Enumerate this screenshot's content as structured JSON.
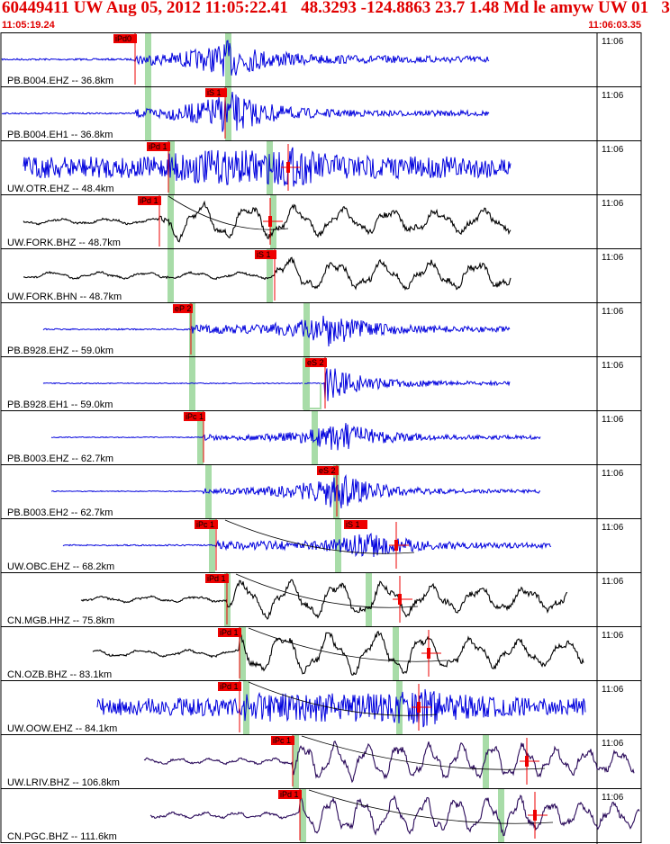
{
  "header": {
    "title": "60449411 UW Aug 05, 2012 11:05:22.41   48.3293 -124.8863 23.7 1.48 Md le amyw UW 01   3",
    "start_time": "11:05:19.24",
    "end_time": "11:06:03.35"
  },
  "colors": {
    "header_red": "#e00000",
    "pick_red": "#ee0000",
    "window_green": "#a8dca8",
    "trace_blue": "#0000dd",
    "trace_black": "#000000",
    "trace_purple": "#2a0a5a"
  },
  "minute_label": "11:06",
  "traces": [
    {
      "station": "PB.B004.EHZ",
      "distance": "-- 36.8km",
      "pick": "iPd0",
      "color": "blue"
    },
    {
      "station": "PB.B004.EH1",
      "distance": "-- 36.8km",
      "pick": "iS 1",
      "color": "blue"
    },
    {
      "station": "UW.OTR.EHZ",
      "distance": "-- 48.4km",
      "pick": "iPd 1",
      "color": "blue"
    },
    {
      "station": "UW.FORK.BHZ",
      "distance": "-- 48.7km",
      "pick": "iPd 1",
      "color": "black"
    },
    {
      "station": "UW.FORK.BHN",
      "distance": "-- 48.7km",
      "pick": "iS 1",
      "color": "black"
    },
    {
      "station": "PB.B928.EHZ",
      "distance": "-- 59.0km",
      "pick": "eP 2",
      "color": "blue"
    },
    {
      "station": "PB.B928.EH1",
      "distance": "-- 59.0km",
      "pick": "eS 2",
      "color": "blue"
    },
    {
      "station": "PB.B003.EHZ",
      "distance": "-- 62.7km",
      "pick": "iPc 1",
      "color": "blue"
    },
    {
      "station": "PB.B003.EH2",
      "distance": "-- 62.7km",
      "pick": "eS 2",
      "color": "blue"
    },
    {
      "station": "UW.OBC.EHZ",
      "distance": "-- 68.2km",
      "pick": "iPc 1",
      "color": "blue",
      "pick2": "iS 1"
    },
    {
      "station": "CN.MGB.HHZ",
      "distance": "-- 75.8km",
      "pick": "iPd 1",
      "color": "black"
    },
    {
      "station": "CN.OZB.BHZ",
      "distance": "-- 83.1km",
      "pick": "iPd 1",
      "color": "black"
    },
    {
      "station": "UW.OOW.EHZ",
      "distance": "-- 84.1km",
      "pick": "iPd 1",
      "color": "blue"
    },
    {
      "station": "UW.LRIV.BHZ",
      "distance": "-- 106.8km",
      "pick": "iPc 1",
      "color": "purple"
    },
    {
      "station": "CN.PGC.BHZ",
      "distance": "-- 111.6km",
      "pick": "iPd 1",
      "color": "purple"
    }
  ]
}
